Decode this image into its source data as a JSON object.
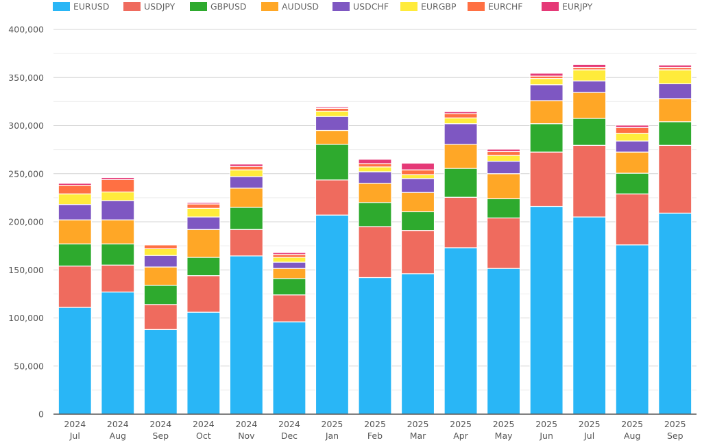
{
  "chart_data": {
    "type": "bar",
    "stacked": true,
    "title": "",
    "xlabel": "",
    "ylabel": "",
    "ylim": [
      0,
      400000
    ],
    "y_ticks": [
      0,
      50000,
      100000,
      150000,
      200000,
      250000,
      300000,
      350000,
      400000
    ],
    "y_tick_labels": [
      "0",
      "50,000",
      "100,000",
      "150,000",
      "200,000",
      "250,000",
      "300,000",
      "350,000",
      "400,000"
    ],
    "grid": true,
    "legend_position": "top",
    "categories": [
      {
        "year": "2024",
        "month": "Jul"
      },
      {
        "year": "2024",
        "month": "Aug"
      },
      {
        "year": "2024",
        "month": "Sep"
      },
      {
        "year": "2024",
        "month": "Oct"
      },
      {
        "year": "2024",
        "month": "Nov"
      },
      {
        "year": "2024",
        "month": "Dec"
      },
      {
        "year": "2025",
        "month": "Jan"
      },
      {
        "year": "2025",
        "month": "Feb"
      },
      {
        "year": "2025",
        "month": "Mar"
      },
      {
        "year": "2025",
        "month": "Apr"
      },
      {
        "year": "2025",
        "month": "May"
      },
      {
        "year": "2025",
        "month": "Jun"
      },
      {
        "year": "2025",
        "month": "Jul"
      },
      {
        "year": "2025",
        "month": "Aug"
      },
      {
        "year": "2025",
        "month": "Sep"
      }
    ],
    "series": [
      {
        "name": "EURUSD",
        "color": "#29b6f6",
        "values": [
          111000,
          127000,
          88000,
          106000,
          164500,
          96000,
          207000,
          142000,
          146000,
          173000,
          151500,
          216000,
          205000,
          176000,
          209000
        ]
      },
      {
        "name": "USDJPY",
        "color": "#ef6b5e",
        "values": [
          43000,
          28000,
          26000,
          38000,
          27500,
          28000,
          36500,
          53000,
          45000,
          52500,
          52500,
          56500,
          74500,
          53000,
          70500
        ]
      },
      {
        "name": "GBPUSD",
        "color": "#2eaa2e",
        "values": [
          23000,
          22000,
          20000,
          19000,
          23000,
          17000,
          37000,
          25000,
          19500,
          30000,
          20000,
          29500,
          28000,
          21500,
          24500
        ]
      },
      {
        "name": "AUDUSD",
        "color": "#ffa726",
        "values": [
          25000,
          25000,
          19000,
          29000,
          20000,
          10500,
          14500,
          20000,
          20000,
          25000,
          26000,
          24000,
          27000,
          22000,
          24000
        ]
      },
      {
        "name": "USDCHF",
        "color": "#7e57c2",
        "values": [
          16000,
          20000,
          12000,
          13000,
          12000,
          6500,
          14500,
          12000,
          14500,
          21500,
          13000,
          16500,
          12000,
          11500,
          15500
        ]
      },
      {
        "name": "EURGBP",
        "color": "#ffeb3b",
        "values": [
          11000,
          9000,
          7000,
          9000,
          7000,
          5000,
          5500,
          5000,
          4000,
          6000,
          6000,
          6500,
          11500,
          8000,
          14500
        ]
      },
      {
        "name": "EURCHF",
        "color": "#ff7043",
        "values": [
          9000,
          13000,
          4000,
          4500,
          3500,
          3000,
          3000,
          3500,
          5000,
          4500,
          4000,
          2500,
          2500,
          6000,
          2500
        ]
      },
      {
        "name": "EURJPY",
        "color": "#e53977",
        "values": [
          2000,
          2000,
          500,
          1500,
          2500,
          2000,
          1500,
          4500,
          7000,
          2000,
          2500,
          3000,
          3000,
          2500,
          2500
        ]
      }
    ]
  }
}
